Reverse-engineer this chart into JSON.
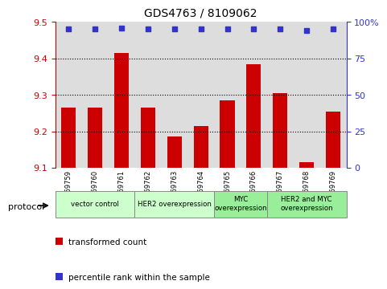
{
  "title": "GDS4763 / 8109062",
  "samples": [
    "GSM1069759",
    "GSM1069760",
    "GSM1069761",
    "GSM1069762",
    "GSM1069763",
    "GSM1069764",
    "GSM1069765",
    "GSM1069766",
    "GSM1069767",
    "GSM1069768",
    "GSM1069769"
  ],
  "red_values": [
    9.265,
    9.265,
    9.415,
    9.265,
    9.185,
    9.215,
    9.285,
    9.385,
    9.305,
    9.115,
    9.255
  ],
  "blue_values": [
    95,
    95,
    96,
    95,
    95,
    95,
    95,
    95,
    95,
    94,
    95
  ],
  "ylim_left": [
    9.1,
    9.5
  ],
  "ylim_right": [
    0,
    100
  ],
  "yticks_left": [
    9.1,
    9.2,
    9.3,
    9.4,
    9.5
  ],
  "yticks_right": [
    0,
    25,
    50,
    75,
    100
  ],
  "ytick_labels_right": [
    "0",
    "25",
    "50",
    "75",
    "100%"
  ],
  "red_color": "#cc0000",
  "blue_color": "#3333cc",
  "bar_bottom": 9.1,
  "protocol_groups": [
    {
      "label": "vector control",
      "start": 0,
      "end": 2,
      "color": "#ccffcc"
    },
    {
      "label": "HER2 overexpression",
      "start": 3,
      "end": 5,
      "color": "#ccffcc"
    },
    {
      "label": "MYC\noverexpression",
      "start": 6,
      "end": 7,
      "color": "#99ee99"
    },
    {
      "label": "HER2 and MYC\noverexpression",
      "start": 8,
      "end": 10,
      "color": "#99ee99"
    }
  ],
  "legend_red_label": "transformed count",
  "legend_blue_label": "percentile rank within the sample",
  "protocol_label": "protocol",
  "bar_width": 0.55,
  "box_color": "#dddddd"
}
